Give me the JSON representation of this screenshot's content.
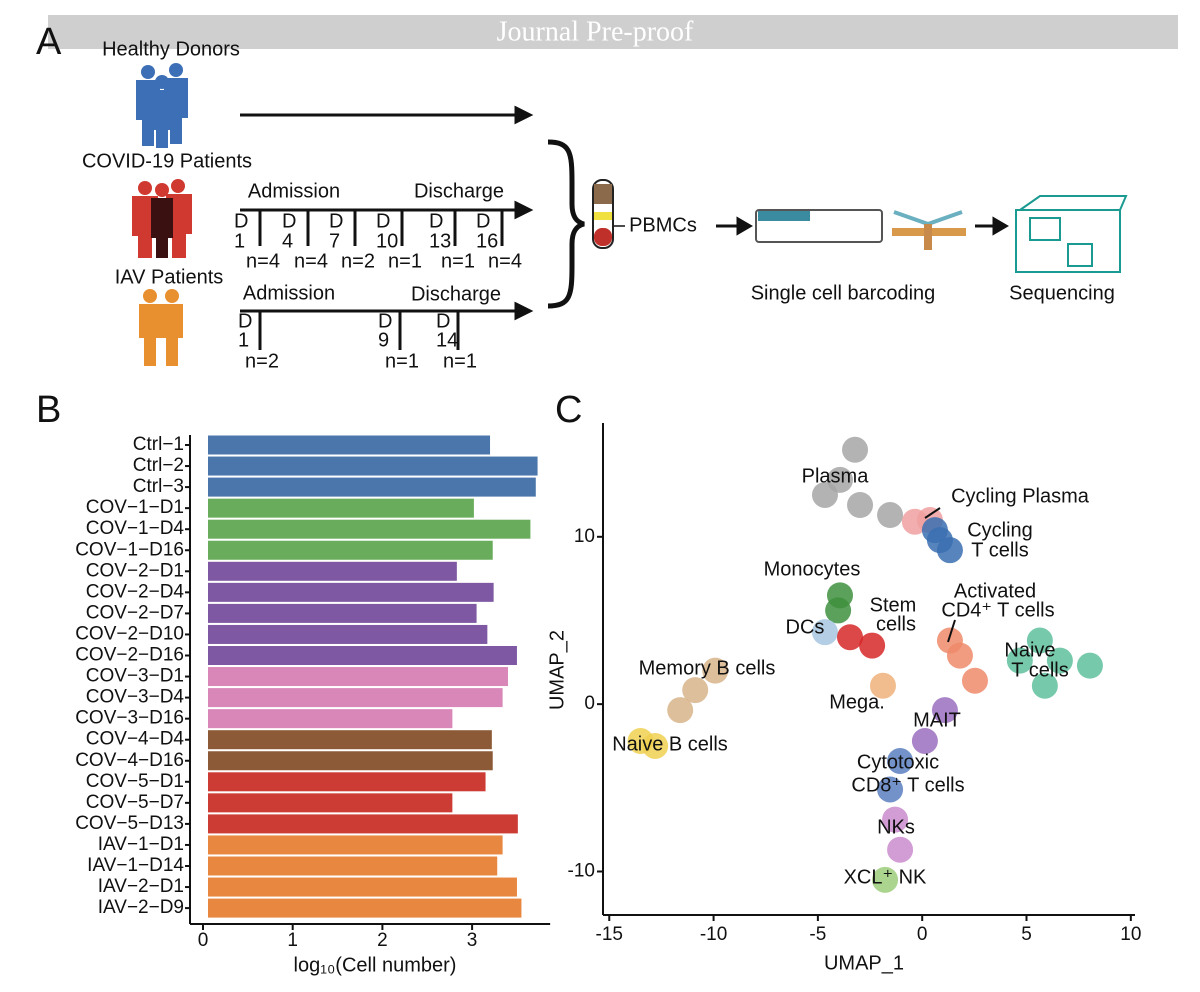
{
  "header": {
    "watermark": "Journal Pre-proof"
  },
  "panel_a": {
    "label": "A",
    "groups": [
      "Healthy Donors",
      "COVID-19 Patients",
      "IAV Patients"
    ],
    "admission": "Admission",
    "discharge": "Discharge",
    "day_prefix": "D",
    "covid_days": [
      "1",
      "4",
      "7",
      "10",
      "13",
      "16"
    ],
    "covid_n": [
      "n=4",
      "n=4",
      "n=2",
      "n=1",
      "n=1",
      "n=4"
    ],
    "iav_days": [
      "1",
      "9",
      "14"
    ],
    "iav_n": [
      "n=2",
      "n=1",
      "n=1"
    ],
    "sample": "PBMCs",
    "step1": "Single cell barcoding",
    "step2": "Sequencing"
  },
  "chart_data": [
    {
      "type": "bar",
      "orientation": "horizontal",
      "panel_label": "B",
      "categories": [
        "Ctrl−1",
        "Ctrl−2",
        "Ctrl−3",
        "COV−1−D1",
        "COV−1−D4",
        "COV−1−D16",
        "COV−2−D1",
        "COV−2−D4",
        "COV−2−D7",
        "COV−2−D10",
        "COV−2−D16",
        "COV−3−D1",
        "COV−3−D4",
        "COV−3−D16",
        "COV−4−D4",
        "COV−4−D16",
        "COV−5−D1",
        "COV−5−D7",
        "COV−5−D13",
        "IAV−1−D1",
        "IAV−1−D14",
        "IAV−2−D1",
        "IAV−2−D9"
      ],
      "values": [
        3.2,
        3.73,
        3.71,
        3.02,
        3.65,
        3.23,
        2.83,
        3.24,
        3.05,
        3.17,
        3.5,
        3.4,
        3.34,
        2.78,
        3.22,
        3.23,
        3.15,
        2.78,
        3.51,
        3.34,
        3.28,
        3.5,
        3.55
      ],
      "colors": [
        "#4a76ab",
        "#4a76ab",
        "#4a76ab",
        "#69ad5c",
        "#69ad5c",
        "#69ad5c",
        "#7e58a3",
        "#7e58a3",
        "#7e58a3",
        "#7e58a3",
        "#7e58a3",
        "#d986b9",
        "#d986b9",
        "#d986b9",
        "#8c5a36",
        "#8c5a36",
        "#cc3b34",
        "#cc3b34",
        "#cc3b34",
        "#e8873f",
        "#e8873f",
        "#e8873f",
        "#e8873f"
      ],
      "xlabel": "log₁₀(Cell number)",
      "xlim": [
        0,
        3.87
      ],
      "xticks": [
        0,
        1,
        2,
        3
      ]
    },
    {
      "type": "scatter",
      "panel_label": "C",
      "xlabel": "UMAP_1",
      "ylabel": "UMAP_2",
      "xlim": [
        -15.3,
        10.2
      ],
      "ylim": [
        -12.6,
        16.8
      ],
      "xticks": [
        -15,
        -10,
        -5,
        0,
        5,
        10
      ],
      "yticks": [
        -10,
        0,
        10
      ],
      "series": [
        {
          "color": "#a6a6a6",
          "x": [
            -3.22,
            -3.94,
            -4.66,
            -2.98,
            -1.54
          ],
          "y": [
            15.2,
            13.4,
            12.5,
            11.9,
            11.3
          ]
        },
        {
          "color": "#f0a0a0",
          "x": [
            -0.35,
            0.37
          ],
          "y": [
            10.9,
            11.0
          ]
        },
        {
          "color": "#3a6fb0",
          "x": [
            0.85,
            1.33,
            0.61
          ],
          "y": [
            9.8,
            9.2,
            10.4
          ]
        },
        {
          "color": "#3e8f3e",
          "x": [
            -3.94,
            -4.03
          ],
          "y": [
            6.5,
            5.6
          ]
        },
        {
          "color": "#a7c7e0",
          "x": [
            -4.66
          ],
          "y": [
            4.3
          ]
        },
        {
          "color": "#d62728",
          "x": [
            -2.4,
            -3.46
          ],
          "y": [
            3.5,
            4.0
          ]
        },
        {
          "color": "#f0b27a",
          "x": [
            -1.88
          ],
          "y": [
            1.1
          ]
        },
        {
          "color": "#5fbf9c",
          "x": [
            4.68,
            6.6,
            8.04,
            5.64,
            5.88
          ],
          "y": [
            2.6,
            2.6,
            2.3,
            3.8,
            1.1
          ]
        },
        {
          "color": "#ef8a6a",
          "x": [
            1.81,
            1.33,
            2.53
          ],
          "y": [
            2.9,
            3.8,
            1.4
          ]
        },
        {
          "color": "#9b6fc0",
          "x": [
            1.09,
            0.13
          ],
          "y": [
            -0.36,
            -2.2
          ]
        },
        {
          "color": "#5b7fbf",
          "x": [
            -1.06,
            -1.54
          ],
          "y": [
            -3.4,
            -5.1
          ]
        },
        {
          "color": "#c98ccc",
          "x": [
            -1.3,
            -1.06
          ],
          "y": [
            -6.9,
            -8.7
          ]
        },
        {
          "color": "#9ccc7a",
          "x": [
            -1.78
          ],
          "y": [
            -10.5
          ]
        },
        {
          "color": "#d8b48a",
          "x": [
            -9.92,
            -10.88,
            -11.6
          ],
          "y": [
            2.0,
            0.84,
            -0.36
          ]
        },
        {
          "color": "#f0d050",
          "x": [
            -13.5,
            -12.8
          ],
          "y": [
            -2.2,
            -2.5
          ]
        }
      ],
      "annotations": [
        "Plasma",
        "Cycling Plasma",
        "Cycling",
        "T cells",
        "Monocytes",
        "Stem",
        "cells",
        "DCs",
        "Activated",
        "CD4⁺ T cells",
        "Naive",
        "T cells",
        "Memory B cells",
        "Mega.",
        "MAIT",
        "Naive B cells",
        "Cytotoxic",
        "CD8⁺ T cells",
        "NKs",
        "XCL⁺ NK"
      ]
    }
  ]
}
